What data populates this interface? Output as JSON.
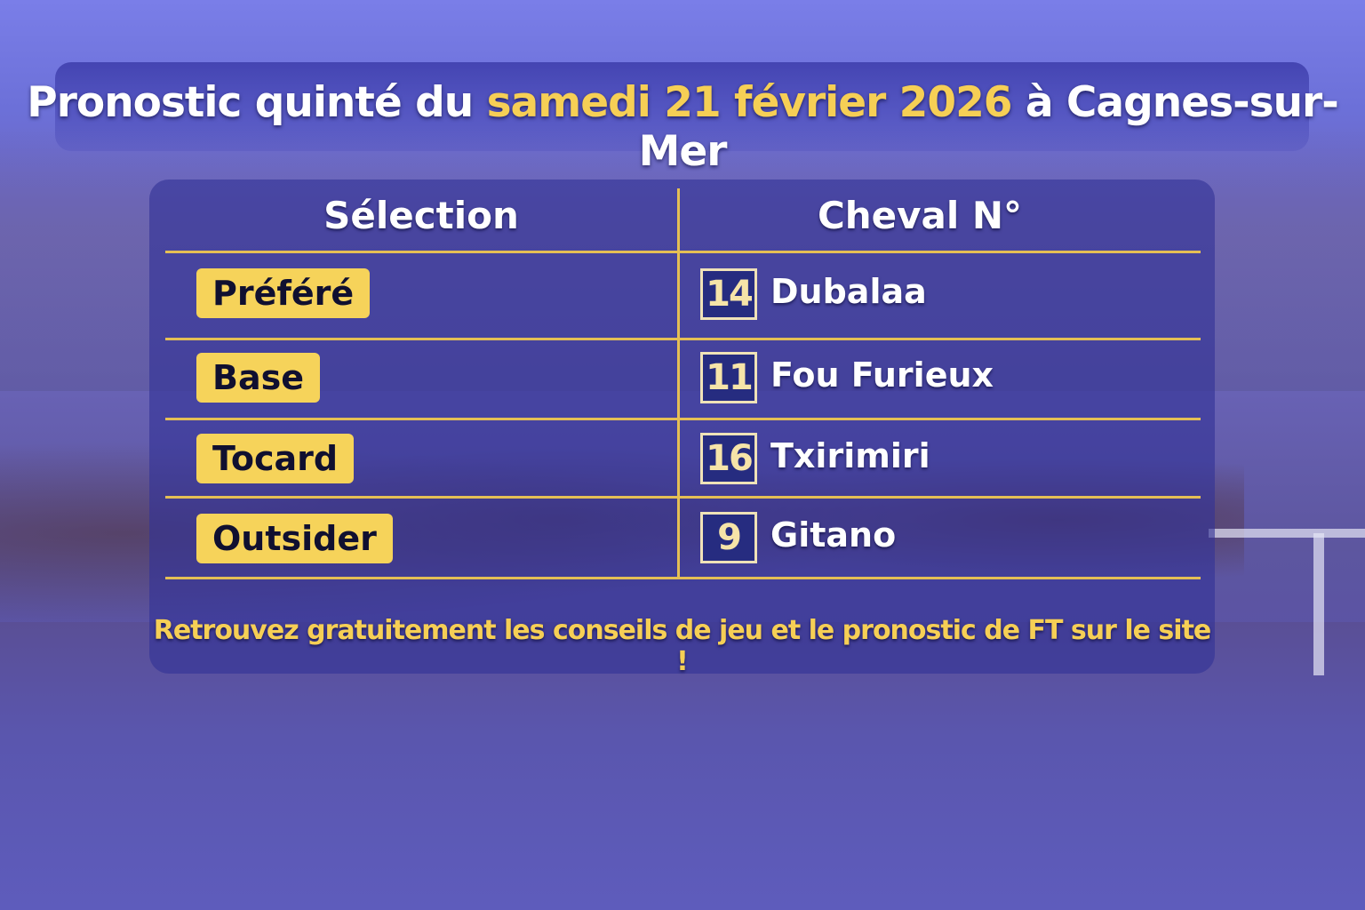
{
  "title": {
    "prefix": "Pronostic quinté du ",
    "date": "samedi 21 février 2026",
    "suffix": " à Cagnes-sur-Mer"
  },
  "colors": {
    "accent": "#f6cf55",
    "panel": "#32329a",
    "number_box": "#262c80"
  },
  "table": {
    "headers": [
      "Sélection",
      "Cheval N°"
    ],
    "rows": [
      {
        "selection": "Préféré",
        "number": "14",
        "horse": "Dubalaa"
      },
      {
        "selection": "Base",
        "number": "11",
        "horse": "Fou Furieux"
      },
      {
        "selection": "Tocard",
        "number": "16",
        "horse": "Txirimiri"
      },
      {
        "selection": "Outsider",
        "number": "9",
        "horse": "Gitano"
      }
    ]
  },
  "footer": "Retrouvez gratuitement les conseils de jeu et le pronostic de FT sur le site !"
}
